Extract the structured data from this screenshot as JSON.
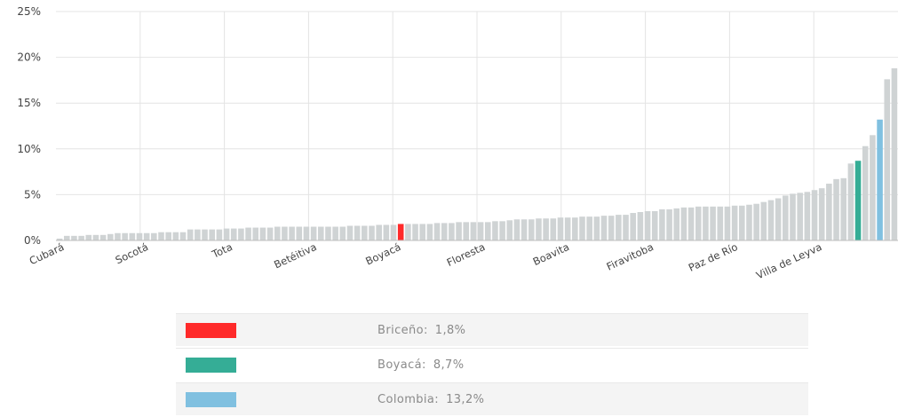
{
  "chart_data": {
    "type": "bar",
    "y_ticks": [
      "0%",
      "5%",
      "10%",
      "15%",
      "20%",
      "25%"
    ],
    "ylim": [
      0,
      25
    ],
    "grid": true,
    "x_tick_labels": [
      "Cubará",
      "Socotá",
      "Tota",
      "Betéitiva",
      "Boyacá",
      "Floresta",
      "Boavita",
      "Firavitoba",
      "Paz de Río",
      "Villa de Leyva"
    ],
    "default_color": "#cfd3d4",
    "values": [
      0.2,
      0.5,
      0.5,
      0.5,
      0.6,
      0.6,
      0.6,
      0.7,
      0.8,
      0.8,
      0.8,
      0.8,
      0.8,
      0.8,
      0.9,
      0.9,
      0.9,
      0.9,
      1.2,
      1.2,
      1.2,
      1.2,
      1.2,
      1.3,
      1.3,
      1.3,
      1.4,
      1.4,
      1.4,
      1.4,
      1.5,
      1.5,
      1.5,
      1.5,
      1.5,
      1.5,
      1.5,
      1.5,
      1.5,
      1.5,
      1.6,
      1.6,
      1.6,
      1.6,
      1.7,
      1.7,
      1.7,
      1.8,
      1.8,
      1.8,
      1.8,
      1.8,
      1.9,
      1.9,
      1.9,
      2.0,
      2.0,
      2.0,
      2.0,
      2.0,
      2.1,
      2.1,
      2.2,
      2.3,
      2.3,
      2.3,
      2.4,
      2.4,
      2.4,
      2.5,
      2.5,
      2.5,
      2.6,
      2.6,
      2.6,
      2.7,
      2.7,
      2.8,
      2.8,
      3.0,
      3.1,
      3.2,
      3.2,
      3.4,
      3.4,
      3.5,
      3.6,
      3.6,
      3.7,
      3.7,
      3.7,
      3.7,
      3.7,
      3.8,
      3.8,
      3.9,
      4.0,
      4.2,
      4.4,
      4.6,
      4.9,
      5.1,
      5.2,
      5.3,
      5.5,
      5.7,
      6.2,
      6.7,
      6.8,
      8.4,
      8.7,
      10.3,
      11.5,
      13.2,
      17.6,
      18.8
    ],
    "highlights": [
      {
        "index": 47,
        "color": "#ff2a2a"
      },
      {
        "index": 110,
        "color": "#35ad96"
      },
      {
        "index": 113,
        "color": "#80c0e0"
      }
    ]
  },
  "legend": [
    {
      "name": "Briceño:",
      "value": "1,8%",
      "color": "#ff2a2a"
    },
    {
      "name": "Boyacá:",
      "value": "8,7%",
      "color": "#35ad96"
    },
    {
      "name": "Colombia:",
      "value": "13,2%",
      "color": "#80c0e0"
    }
  ]
}
